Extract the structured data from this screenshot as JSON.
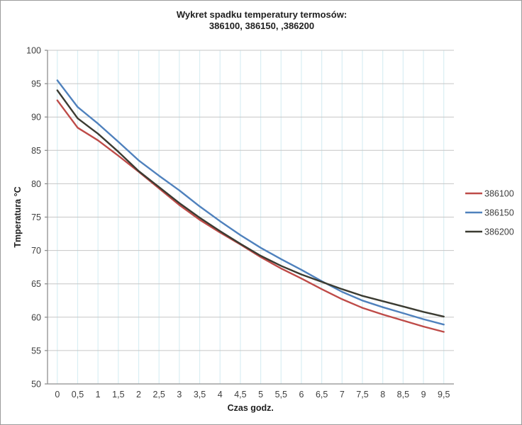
{
  "title": {
    "line1": "Wykret spadku temperatury termosów:",
    "line2": "386100, 386150, ,386200"
  },
  "chart_data": {
    "type": "line",
    "title": "Wykret spadku temperatury termosów: 386100, 386150, ,386200",
    "xlabel": "Czas godz.",
    "ylabel": "Tmperatura °C",
    "categories": [
      "0",
      "0,5",
      "1",
      "1,5",
      "2",
      "2,5",
      "3",
      "3,5",
      "4",
      "4,5",
      "5",
      "5,5",
      "6",
      "6,5",
      "7",
      "7,5",
      "8",
      "8,5",
      "9",
      "9,5"
    ],
    "x_values": [
      0,
      0.5,
      1,
      1.5,
      2,
      2.5,
      3,
      3.5,
      4,
      4.5,
      5,
      5.5,
      6,
      6.5,
      7,
      7.5,
      8,
      8.5,
      9,
      9.5
    ],
    "series": [
      {
        "name": "386100",
        "color": "#be4b48",
        "values": [
          92.5,
          88.4,
          86.5,
          84.2,
          81.8,
          79.3,
          76.8,
          74.6,
          72.7,
          70.9,
          69.0,
          67.3,
          65.8,
          64.2,
          62.7,
          61.4,
          60.4,
          59.5,
          58.6,
          57.8
        ]
      },
      {
        "name": "386150",
        "color": "#4f81bd",
        "values": [
          95.5,
          91.5,
          89.0,
          86.3,
          83.5,
          81.2,
          79.0,
          76.6,
          74.4,
          72.3,
          70.4,
          68.7,
          67.1,
          65.4,
          63.8,
          62.5,
          61.5,
          60.6,
          59.7,
          58.9
        ]
      },
      {
        "name": "386200",
        "color": "#3b3b31",
        "values": [
          94.0,
          89.8,
          87.5,
          84.8,
          81.9,
          79.5,
          77.1,
          74.9,
          72.9,
          71.0,
          69.2,
          67.7,
          66.4,
          65.3,
          64.2,
          63.2,
          62.4,
          61.6,
          60.8,
          60.1
        ]
      }
    ],
    "ylim": [
      50,
      100
    ],
    "ytick_step": 5,
    "yticks": [
      100,
      95,
      90,
      85,
      80,
      75,
      70,
      65,
      60,
      55,
      50
    ],
    "grid": {
      "horizontal": true,
      "vertical": true
    },
    "legend_position": "right",
    "legend_entries": [
      "386100",
      "386150",
      "386200"
    ]
  },
  "colors": {
    "horizontal_grid": "#c6c6c6",
    "vertical_grid": "#d9eef3",
    "axis_line": "#8e8e8e",
    "tick_text": "#3f3f3f",
    "title_text": "#1f1f1f"
  }
}
